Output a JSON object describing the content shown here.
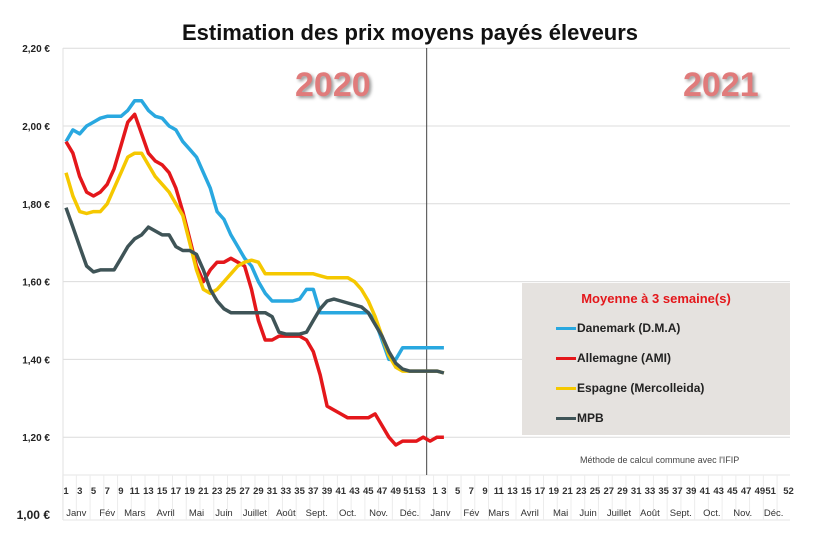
{
  "chart_data": {
    "type": "line",
    "title": "Estimation des prix moyens payés éleveurs",
    "year_labels": [
      "2020",
      "2021"
    ],
    "y_ticks": [
      "1,00 €",
      "1,20 €",
      "1,40 €",
      "1,60 €",
      "1,80 €",
      "2,00 €",
      "2,20 €"
    ],
    "ylim": [
      1.0,
      2.2
    ],
    "grid": true,
    "x_week_ticks_2020": [
      "1",
      "3",
      "5",
      "7",
      "9",
      "11",
      "13",
      "15",
      "17",
      "19",
      "21",
      "23",
      "25",
      "27",
      "29",
      "31",
      "33",
      "35",
      "37",
      "39",
      "41",
      "43",
      "45",
      "47",
      "49",
      "51",
      "53"
    ],
    "x_week_ticks_2021": [
      "1",
      "3",
      "5",
      "7",
      "9",
      "11",
      "13",
      "15",
      "17",
      "19",
      "21",
      "23",
      "25",
      "27",
      "29",
      "31",
      "33",
      "35",
      "37",
      "39",
      "41",
      "43",
      "45",
      "47",
      "49",
      "51",
      "52"
    ],
    "months": [
      "Janv",
      "Fév",
      "Mars",
      "Avril",
      "Mai",
      "Juin",
      "Juillet",
      "Août",
      "Sept.",
      "Oct.",
      "Nov.",
      "Déc."
    ],
    "legend": {
      "title": "Moyenne à  3 semaine(s)",
      "placement": "right"
    },
    "note": "Méthode de calcul commune avec l'IFIP",
    "series": [
      {
        "name": "Danemark (D.M.A)",
        "color": "#29a8e0",
        "values_2020": [
          1.96,
          1.99,
          1.98,
          2.0,
          2.01,
          2.02,
          2.025,
          2.025,
          2.025,
          2.04,
          2.065,
          2.065,
          2.04,
          2.025,
          2.02,
          2.0,
          1.99,
          1.96,
          1.94,
          1.92,
          1.88,
          1.84,
          1.78,
          1.76,
          1.72,
          1.69,
          1.66,
          1.64,
          1.6,
          1.57,
          1.55,
          1.55,
          1.55,
          1.55,
          1.555,
          1.58,
          1.58,
          1.52,
          1.52,
          1.52,
          1.52,
          1.52,
          1.52,
          1.52,
          1.52,
          1.5,
          1.45,
          1.4,
          1.4,
          1.43,
          1.43,
          1.43,
          1.43
        ],
        "values_2021": [
          1.43,
          1.43,
          1.43
        ]
      },
      {
        "name": "Allemagne (AMI)",
        "color": "#e4171b",
        "values_2020": [
          1.96,
          1.93,
          1.87,
          1.83,
          1.82,
          1.83,
          1.85,
          1.89,
          1.95,
          2.01,
          2.03,
          1.98,
          1.93,
          1.91,
          1.9,
          1.88,
          1.84,
          1.78,
          1.71,
          1.64,
          1.6,
          1.63,
          1.65,
          1.65,
          1.66,
          1.65,
          1.64,
          1.58,
          1.5,
          1.45,
          1.45,
          1.46,
          1.46,
          1.46,
          1.46,
          1.45,
          1.42,
          1.36,
          1.28,
          1.27,
          1.26,
          1.25,
          1.25,
          1.25,
          1.25,
          1.26,
          1.23,
          1.2,
          1.18,
          1.19,
          1.19,
          1.19,
          1.2
        ],
        "values_2021": [
          1.19,
          1.2,
          1.2
        ]
      },
      {
        "name": "Espagne (Mercolleida)",
        "color": "#f5c800",
        "values_2020": [
          1.88,
          1.82,
          1.78,
          1.775,
          1.78,
          1.78,
          1.8,
          1.84,
          1.88,
          1.92,
          1.93,
          1.93,
          1.9,
          1.87,
          1.85,
          1.83,
          1.8,
          1.77,
          1.7,
          1.63,
          1.58,
          1.57,
          1.58,
          1.6,
          1.62,
          1.64,
          1.65,
          1.655,
          1.65,
          1.62,
          1.62,
          1.62,
          1.62,
          1.62,
          1.62,
          1.62,
          1.62,
          1.615,
          1.61,
          1.61,
          1.61,
          1.61,
          1.6,
          1.58,
          1.55,
          1.51,
          1.46,
          1.41,
          1.38,
          1.37,
          1.37,
          1.37,
          1.37
        ],
        "values_2021": [
          1.37,
          1.37,
          1.365
        ]
      },
      {
        "name": "MPB",
        "color": "#3f5457",
        "values_2020": [
          1.79,
          1.74,
          1.69,
          1.64,
          1.625,
          1.63,
          1.63,
          1.63,
          1.66,
          1.69,
          1.71,
          1.72,
          1.74,
          1.73,
          1.72,
          1.72,
          1.69,
          1.68,
          1.68,
          1.67,
          1.63,
          1.58,
          1.55,
          1.53,
          1.52,
          1.52,
          1.52,
          1.52,
          1.52,
          1.52,
          1.51,
          1.47,
          1.465,
          1.465,
          1.465,
          1.47,
          1.5,
          1.53,
          1.55,
          1.555,
          1.55,
          1.545,
          1.54,
          1.535,
          1.52,
          1.49,
          1.46,
          1.42,
          1.39,
          1.375,
          1.37,
          1.37,
          1.37
        ],
        "values_2021": [
          1.37,
          1.37,
          1.365
        ]
      }
    ]
  }
}
